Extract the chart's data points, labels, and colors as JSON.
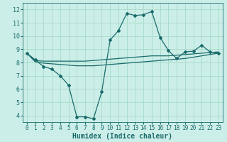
{
  "title": "",
  "xlabel": "Humidex (Indice chaleur)",
  "background_color": "#cceee8",
  "grid_color": "#aaddcc",
  "line_color": "#1a6b6b",
  "xlim": [
    -0.5,
    23.5
  ],
  "ylim": [
    3.5,
    12.5
  ],
  "xticks": [
    0,
    1,
    2,
    3,
    4,
    5,
    6,
    7,
    8,
    9,
    10,
    11,
    12,
    13,
    14,
    15,
    16,
    17,
    18,
    19,
    20,
    21,
    22,
    23
  ],
  "yticks": [
    4,
    5,
    6,
    7,
    8,
    9,
    10,
    11,
    12
  ],
  "main_x": [
    0,
    1,
    2,
    3,
    4,
    5,
    6,
    7,
    8,
    9,
    10,
    11,
    12,
    13,
    14,
    15,
    16,
    17,
    18,
    19,
    20,
    21,
    22,
    23
  ],
  "main_y": [
    8.7,
    8.2,
    7.7,
    7.5,
    7.0,
    6.3,
    3.9,
    3.9,
    3.75,
    5.8,
    9.7,
    10.4,
    11.7,
    11.55,
    11.6,
    11.85,
    9.9,
    8.9,
    8.3,
    8.8,
    8.85,
    9.3,
    8.8,
    8.7
  ],
  "line1_x": [
    0,
    1,
    2,
    3,
    4,
    5,
    6,
    7,
    8,
    9,
    10,
    11,
    12,
    13,
    14,
    15,
    16,
    17,
    18,
    19,
    20,
    21,
    22,
    23
  ],
  "line1_y": [
    8.7,
    8.15,
    8.1,
    8.1,
    8.1,
    8.1,
    8.1,
    8.1,
    8.15,
    8.2,
    8.25,
    8.3,
    8.35,
    8.4,
    8.45,
    8.5,
    8.5,
    8.5,
    8.55,
    8.6,
    8.65,
    8.7,
    8.75,
    8.8
  ],
  "line2_x": [
    0,
    1,
    2,
    3,
    4,
    5,
    6,
    7,
    8,
    9,
    10,
    11,
    12,
    13,
    14,
    15,
    16,
    17,
    18,
    19,
    20,
    21,
    22,
    23
  ],
  "line2_y": [
    8.7,
    8.05,
    7.95,
    7.9,
    7.85,
    7.8,
    7.75,
    7.75,
    7.75,
    7.8,
    7.85,
    7.9,
    7.95,
    8.0,
    8.05,
    8.1,
    8.15,
    8.2,
    8.25,
    8.3,
    8.4,
    8.5,
    8.6,
    8.7
  ],
  "tick_fontsize": 5.5,
  "xlabel_fontsize": 7
}
